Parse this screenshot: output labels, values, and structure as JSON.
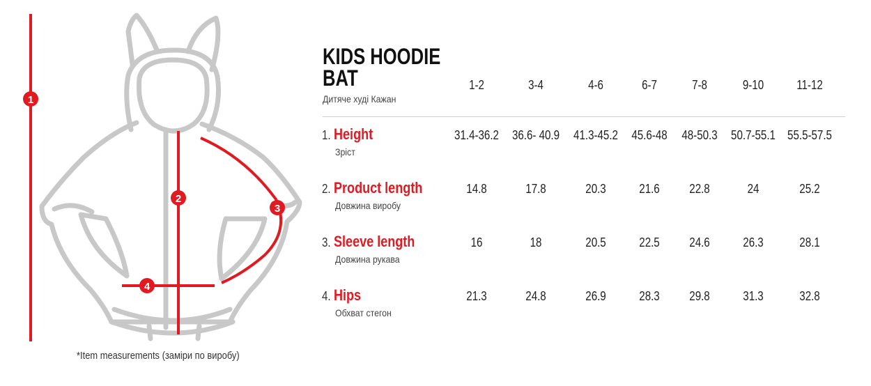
{
  "title_line1": "KIDS HOODIE",
  "title_line2": "BAT",
  "subtitle": "Дитяче худі Кажан",
  "note": "*Item measurements (заміри по виробу)",
  "diagram_markers": [
    "1",
    "2",
    "3",
    "4"
  ],
  "sizes": [
    "1-2",
    "3-4",
    "4-6",
    "6-7",
    "7-8",
    "9-10",
    "11-12"
  ],
  "rows": [
    {
      "number": "1.",
      "name": "Height",
      "sub": "Зріст",
      "values": [
        "31.4-36.2",
        "36.6- 40.9",
        "41.3-45.2",
        "45.6-48",
        "48-50.3",
        "50.7-55.1",
        "55.5-57.5"
      ]
    },
    {
      "number": "2.",
      "name": "Product length",
      "sub": "Довжина виробу",
      "values": [
        "14.8",
        "17.8",
        "20.3",
        "21.6",
        "22.8",
        "24",
        "25.2"
      ]
    },
    {
      "number": "3.",
      "name": "Sleeve length",
      "sub": "Довжина рукава",
      "values": [
        "16",
        "18",
        "20.5",
        "22.5",
        "24.6",
        "26.3",
        "28.1"
      ]
    },
    {
      "number": "4.",
      "name": "Hips",
      "sub": "Обхват стегон",
      "values": [
        "21.3",
        "24.8",
        "26.9",
        "28.3",
        "29.8",
        "31.3",
        "32.8"
      ]
    }
  ],
  "colors": {
    "accent": "#e11a22",
    "outline": "#c8c8c8",
    "text": "#222222"
  }
}
